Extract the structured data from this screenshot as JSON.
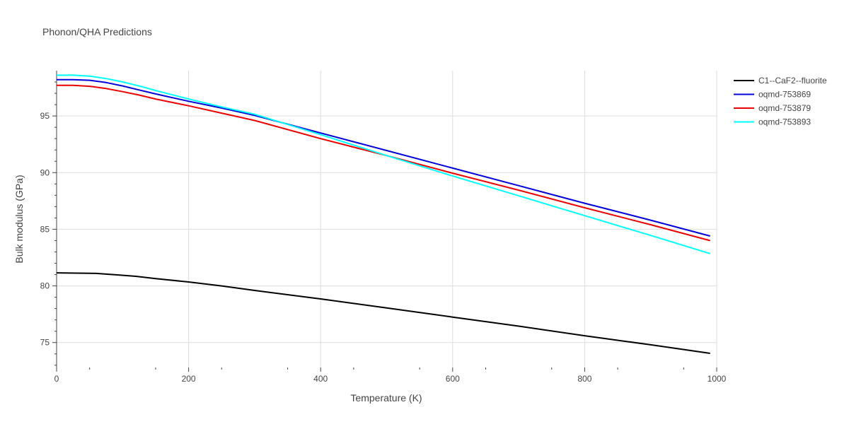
{
  "chart_data": {
    "type": "line",
    "title": "Phonon/QHA Predictions",
    "xlabel": "Temperature (K)",
    "ylabel": "Bulk modulus (GPa)",
    "xlim": [
      0,
      1000
    ],
    "ylim": [
      72.8,
      99.0
    ],
    "xticks": [
      0,
      200,
      400,
      600,
      800,
      1000
    ],
    "yticks": [
      75,
      80,
      85,
      90,
      95
    ],
    "grid": true,
    "legend_position": "top-right",
    "series": [
      {
        "name": "C1--CaF2--fluorite",
        "color": "#000000",
        "x": [
          0,
          30,
          60,
          90,
          120,
          150,
          200,
          250,
          300,
          400,
          500,
          600,
          700,
          800,
          900,
          990
        ],
        "y": [
          81.15,
          81.13,
          81.1,
          80.98,
          80.85,
          80.65,
          80.35,
          80.0,
          79.6,
          78.85,
          78.05,
          77.25,
          76.45,
          75.6,
          74.8,
          74.05
        ]
      },
      {
        "name": "oqmd-753869",
        "color": "#0000dd",
        "x": [
          0,
          25,
          50,
          75,
          100,
          125,
          150,
          200,
          250,
          300,
          400,
          500,
          600,
          700,
          800,
          900,
          990
        ],
        "y": [
          98.2,
          98.2,
          98.15,
          97.95,
          97.65,
          97.3,
          96.95,
          96.3,
          95.7,
          95.05,
          93.5,
          91.95,
          90.4,
          88.85,
          87.3,
          85.8,
          84.4
        ]
      },
      {
        "name": "oqmd-753879",
        "color": "#ee0000",
        "x": [
          0,
          25,
          50,
          75,
          100,
          125,
          150,
          200,
          250,
          300,
          400,
          500,
          600,
          700,
          800,
          900,
          990
        ],
        "y": [
          97.7,
          97.7,
          97.62,
          97.42,
          97.15,
          96.85,
          96.5,
          95.9,
          95.25,
          94.6,
          93.0,
          91.5,
          89.95,
          88.45,
          86.9,
          85.4,
          84.0
        ]
      },
      {
        "name": "oqmd-753893",
        "color": "#00ffff",
        "x": [
          0,
          25,
          50,
          75,
          100,
          125,
          150,
          200,
          250,
          300,
          400,
          500,
          600,
          700,
          800,
          900,
          990
        ],
        "y": [
          98.6,
          98.6,
          98.52,
          98.3,
          98.0,
          97.65,
          97.25,
          96.5,
          95.8,
          95.15,
          93.35,
          91.5,
          89.7,
          87.95,
          86.2,
          84.45,
          82.85
        ]
      }
    ]
  }
}
